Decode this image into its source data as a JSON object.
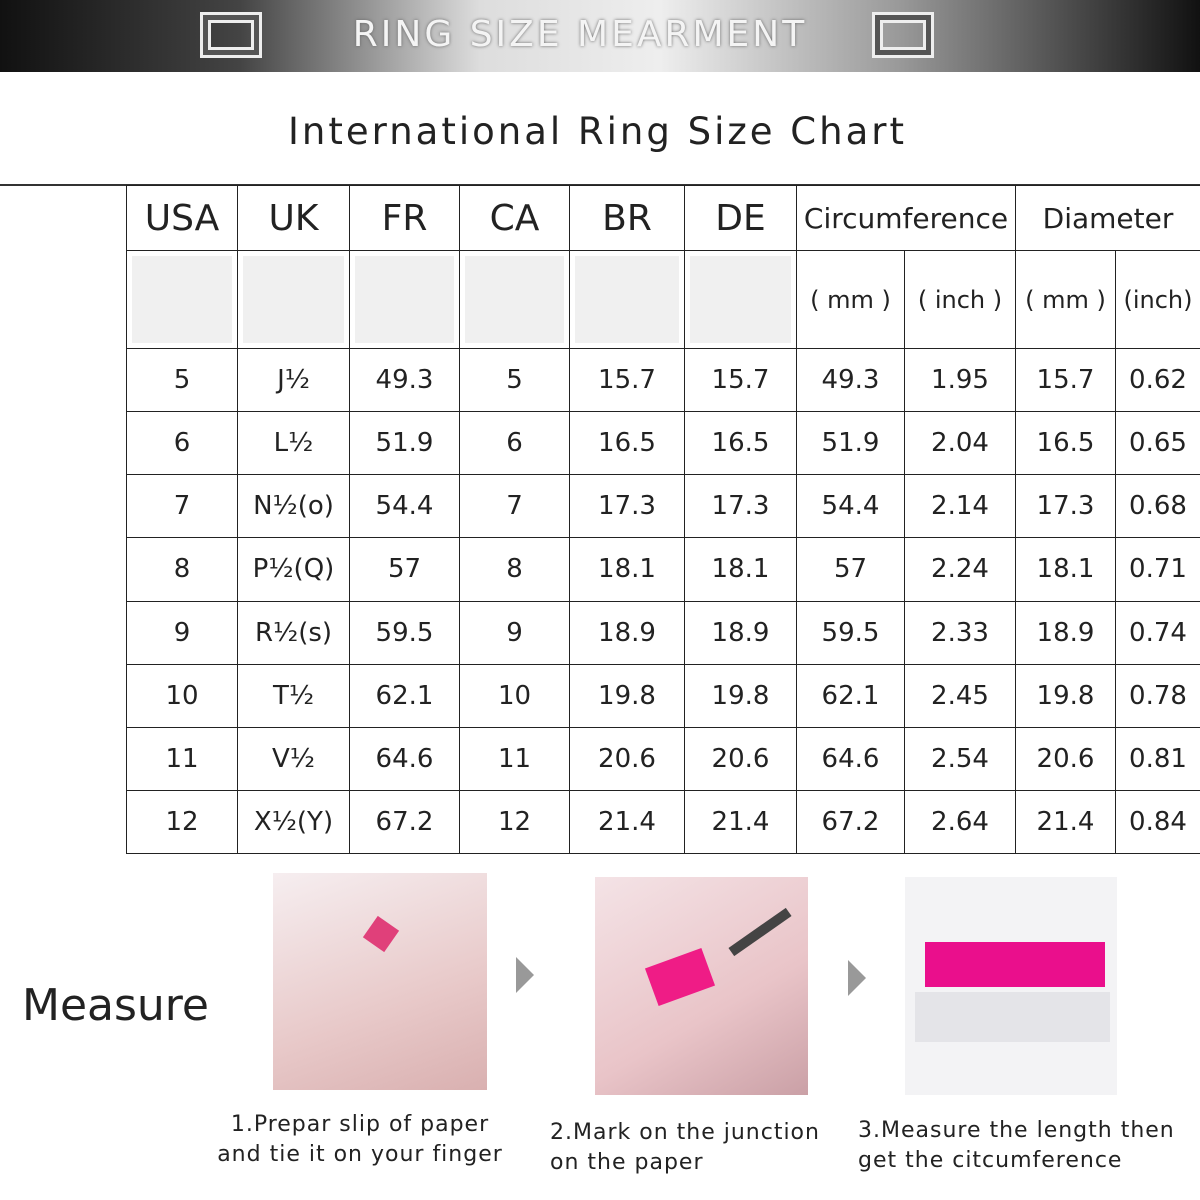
{
  "header": {
    "banner_title": "RING SIZE MEARMENT",
    "title": "International Ring Size Chart"
  },
  "table": {
    "headers": [
      "USA",
      "UK",
      "FR",
      "CA",
      "BR",
      "DE",
      "Circumference",
      "Diameter"
    ],
    "subheaders": [
      "( mm )",
      "( inch )",
      "( mm )",
      "(inch)"
    ],
    "rows": [
      [
        "5",
        "J½",
        "49.3",
        "5",
        "15.7",
        "15.7",
        "49.3",
        "1.95",
        "15.7",
        "0.62"
      ],
      [
        "6",
        "L½",
        "51.9",
        "6",
        "16.5",
        "16.5",
        "51.9",
        "2.04",
        "16.5",
        "0.65"
      ],
      [
        "7",
        "N½(o)",
        "54.4",
        "7",
        "17.3",
        "17.3",
        "54.4",
        "2.14",
        "17.3",
        "0.68"
      ],
      [
        "8",
        "P½(Q)",
        "57",
        "8",
        "18.1",
        "18.1",
        "57",
        "2.24",
        "18.1",
        "0.71"
      ],
      [
        "9",
        "R½(s)",
        "59.5",
        "9",
        "18.9",
        "18.9",
        "59.5",
        "2.33",
        "18.9",
        "0.74"
      ],
      [
        "10",
        "T½",
        "62.1",
        "10",
        "19.8",
        "19.8",
        "62.1",
        "2.45",
        "19.8",
        "0.78"
      ],
      [
        "11",
        "V½",
        "64.6",
        "11",
        "20.6",
        "20.6",
        "64.6",
        "2.54",
        "20.6",
        "0.81"
      ],
      [
        "12",
        "X½(Y)",
        "67.2",
        "12",
        "21.4",
        "21.4",
        "67.2",
        "2.64",
        "21.4",
        "0.84"
      ]
    ]
  },
  "measure": {
    "label": "Measure",
    "steps": [
      [
        "1.Prepar slip of paper",
        "and tie it on your finger"
      ],
      [
        "2.Mark on the junction",
        "on the paper"
      ],
      [
        "3.Measure the length then",
        "get the citcumference"
      ]
    ]
  }
}
